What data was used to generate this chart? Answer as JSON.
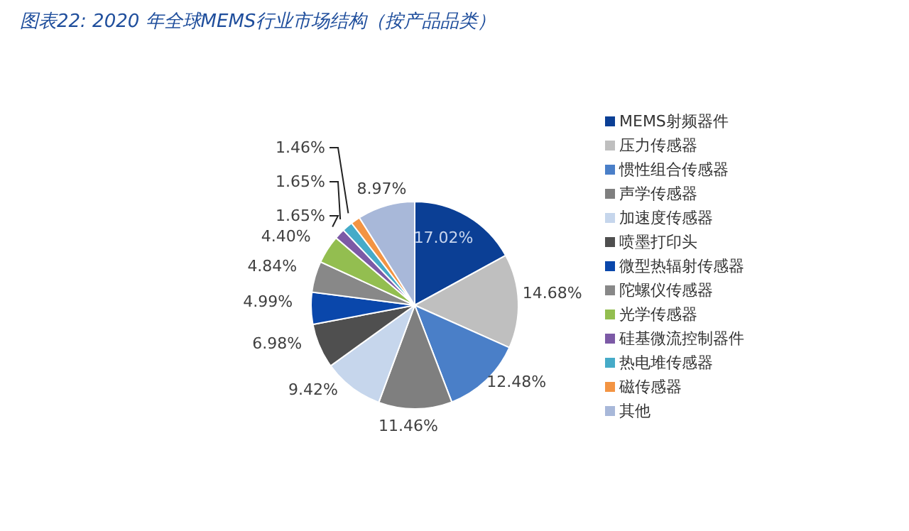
{
  "chart_data": {
    "type": "pie",
    "title": "图表22:  2020 年全球MEMS行业市场结构（按产品品类）",
    "categories": [
      "MEMS射频器件",
      "压力传感器",
      "惯性组合传感器",
      "声学传感器",
      "加速度传感器",
      "喷墨打印头",
      "微型热辐射传感器",
      "陀螺仪传感器",
      "光学传感器",
      "硅基微流控制器件",
      "热电堆传感器",
      "磁传感器",
      "其他"
    ],
    "values": [
      17.02,
      14.68,
      12.48,
      11.46,
      9.42,
      6.98,
      4.99,
      4.84,
      4.4,
      1.65,
      1.65,
      1.46,
      8.97
    ],
    "value_labels": [
      "17.02%",
      "14.68%",
      "12.48%",
      "11.46%",
      "9.42%",
      "6.98%",
      "4.99%",
      "4.84%",
      "4.40%",
      "1.65%",
      "1.65%",
      "1.46%",
      "8.97%"
    ],
    "colors": [
      "#0b3f95",
      "#bfbfbf",
      "#4a7fc8",
      "#7f7f7f",
      "#c6d6ec",
      "#4f4f4f",
      "#0a47ab",
      "#888888",
      "#93be50",
      "#7c5aa6",
      "#46abc8",
      "#f39443",
      "#a8b8d9"
    ],
    "legend": "right"
  }
}
